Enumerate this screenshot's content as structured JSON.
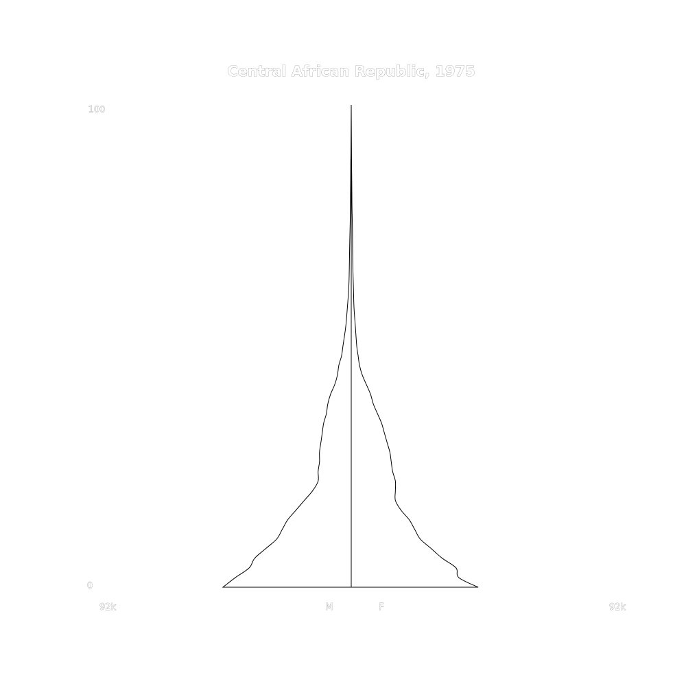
{
  "chart_data": {
    "type": "area",
    "title": "Central African Republic, 1975",
    "y_tick_labels": [
      "0",
      "100"
    ],
    "x_tick_labels": [
      "92k",
      "92k"
    ],
    "ylim": [
      0,
      100
    ],
    "xlim": [
      -92000,
      92000
    ],
    "series": [
      {
        "name": "M",
        "side": "left",
        "ages": [
          0,
          2,
          4,
          6,
          8,
          10,
          12,
          14,
          16,
          18,
          20,
          22,
          24,
          26,
          28,
          30,
          32,
          34,
          36,
          38,
          40,
          42,
          44,
          46,
          48,
          50,
          54,
          58,
          62,
          66,
          70,
          74,
          78,
          80,
          84,
          88,
          90,
          94,
          100
        ],
        "values": [
          46500,
          42000,
          37000,
          35000,
          31000,
          27000,
          25000,
          23000,
          20000,
          17000,
          14000,
          12000,
          12000,
          11500,
          11500,
          11000,
          10500,
          10000,
          9000,
          8500,
          7500,
          6000,
          5000,
          4500,
          3500,
          3000,
          2000,
          1400,
          900,
          700,
          600,
          450,
          300,
          280,
          200,
          160,
          100,
          60,
          0
        ]
      },
      {
        "name": "F",
        "side": "right",
        "ages": [
          0,
          2,
          4,
          6,
          8,
          10,
          12,
          14,
          16,
          18,
          20,
          22,
          24,
          26,
          28,
          30,
          32,
          34,
          36,
          38,
          40,
          42,
          44,
          46,
          48,
          50,
          54,
          58,
          62,
          66,
          70,
          74,
          78,
          80,
          84,
          88,
          90,
          94,
          100
        ],
        "values": [
          46000,
          39000,
          38000,
          33000,
          29000,
          25000,
          23000,
          21000,
          18000,
          16000,
          16000,
          16000,
          15000,
          14500,
          14000,
          13000,
          12000,
          11000,
          9500,
          8000,
          7000,
          5500,
          4000,
          3000,
          2500,
          2000,
          1500,
          1000,
          800,
          600,
          500,
          450,
          300,
          250,
          200,
          120,
          100,
          60,
          0
        ]
      }
    ]
  }
}
